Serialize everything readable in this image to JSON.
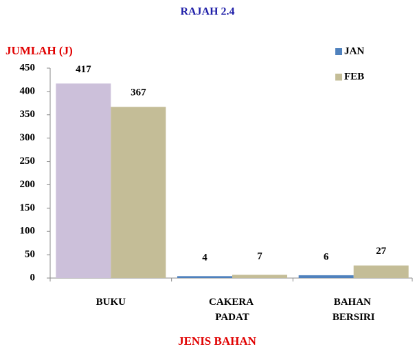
{
  "chart_data": {
    "type": "bar",
    "title": "RAJAH 2.4",
    "y_label": "JUMLAH (J)",
    "x_label": "JENIS BAHAN",
    "categories": [
      "BUKU",
      "CAKERA PADAT",
      "BAHAN BERSIRI"
    ],
    "series": [
      {
        "name": "JAN",
        "color": "#4f81bd",
        "colors": [
          "#ccc0da",
          "#4f81bd",
          "#4f81bd"
        ],
        "values": [
          417,
          4,
          6
        ]
      },
      {
        "name": "FEB",
        "color": "#c4bd97",
        "colors": [
          "#c4bd97",
          "#c4bd97",
          "#c4bd97"
        ],
        "values": [
          367,
          7,
          27
        ]
      }
    ],
    "ylim": [
      0,
      450
    ],
    "yticks": [
      0,
      50,
      100,
      150,
      200,
      250,
      300,
      350,
      400,
      450
    ],
    "grid": false,
    "legend": "top-right"
  }
}
